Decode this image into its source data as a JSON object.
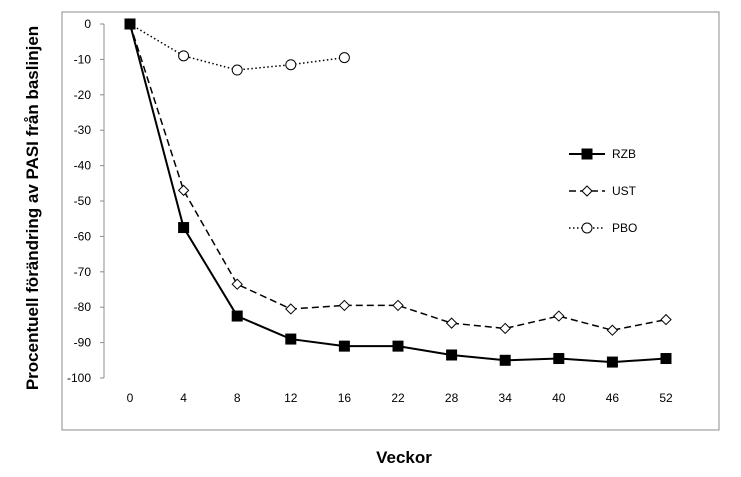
{
  "chart_data": {
    "type": "line",
    "xlabel": "Veckor",
    "ylabel": "Procentuell förändring av PASI från baslinjen",
    "categories": [
      "0",
      "4",
      "8",
      "12",
      "16",
      "22",
      "28",
      "34",
      "40",
      "46",
      "52"
    ],
    "ylim": [
      -100,
      0
    ],
    "yticks": [
      0,
      -10,
      -20,
      -30,
      -40,
      -50,
      -60,
      -70,
      -80,
      -90,
      -100
    ],
    "grid": false,
    "legend_position": "right",
    "series": [
      {
        "name": "RZB",
        "style": "solid",
        "marker": "filled-square",
        "color": "#000000",
        "values": [
          0,
          -57.5,
          -82.5,
          -89,
          -91,
          -91,
          -93.5,
          -95,
          -94.5,
          -95.5,
          -94.5
        ]
      },
      {
        "name": "UST",
        "style": "dashed",
        "marker": "open-diamond",
        "color": "#000000",
        "values": [
          0,
          -47,
          -73.5,
          -80.5,
          -79.5,
          -79.5,
          -84.5,
          -86,
          -82.5,
          -86.5,
          -83.5
        ]
      },
      {
        "name": "PBO",
        "style": "dotted",
        "marker": "open-circle",
        "color": "#000000",
        "values": [
          0,
          -9,
          -13,
          -11.5,
          -9.5,
          null,
          null,
          null,
          null,
          null,
          null
        ]
      }
    ]
  }
}
